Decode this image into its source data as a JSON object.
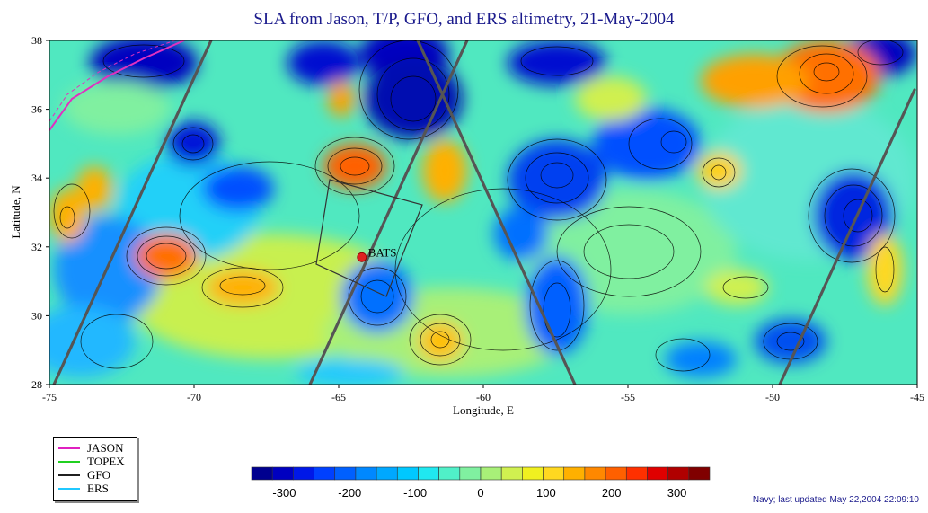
{
  "title": "SLA from Jason, T/P, GFO, and ERS altimetry, 21-May-2004",
  "axes": {
    "xlabel": "Longitude, E",
    "ylabel": "Latitude, N",
    "xticks": [
      "-75",
      "-70",
      "-65",
      "-60",
      "-55",
      "-50",
      "-45"
    ],
    "yticks": [
      "38",
      "36",
      "34",
      "32",
      "30",
      "28"
    ],
    "xrange": [
      -75,
      -45
    ],
    "yrange": [
      28,
      38
    ]
  },
  "station": {
    "label": "BATS",
    "lon": -64.2,
    "lat": 31.7,
    "color": "#e02020"
  },
  "legend": [
    {
      "label": "JASON",
      "color": "#e020c0"
    },
    {
      "label": "TOPEX",
      "color": "#20d020"
    },
    {
      "label": "GFO",
      "color": "#202020"
    },
    {
      "label": "ERS",
      "color": "#20c8ff"
    }
  ],
  "colorbar": {
    "ticks": [
      "-300",
      "-200",
      "-100",
      "0",
      "100",
      "200",
      "300"
    ],
    "range": [
      -350,
      350
    ],
    "colors": [
      "#00008f",
      "#0000c0",
      "#0018e8",
      "#0040ff",
      "#0060ff",
      "#0088ff",
      "#00a8ff",
      "#00c8ff",
      "#20e8f0",
      "#50f0c8",
      "#80f0a0",
      "#a8f078",
      "#d0f050",
      "#f0f020",
      "#ffd820",
      "#ffb000",
      "#ff8800",
      "#ff6000",
      "#ff3000",
      "#e00000",
      "#b00000",
      "#800000"
    ]
  },
  "credit": "Navy; last updated May 22,2004 22:09:10"
}
